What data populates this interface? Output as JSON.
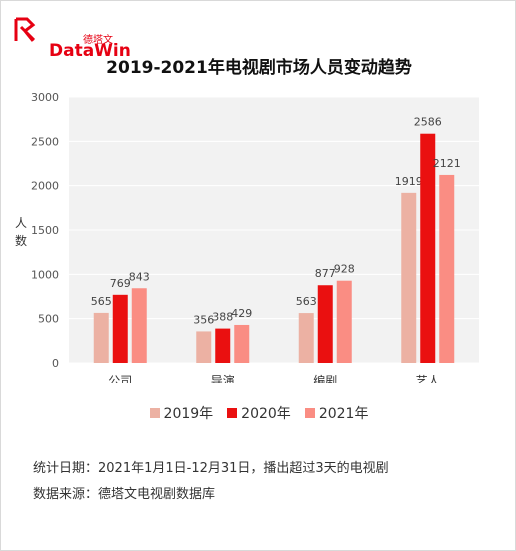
{
  "brand": {
    "name": "DataWin",
    "sub": "德塔文",
    "color": "#e60012"
  },
  "title": "2019-2021年电视剧市场人员变动趋势",
  "chart_data": {
    "type": "bar",
    "title": "2019-2021年电视剧市场人员变动趋势",
    "xlabel": "",
    "ylabel": "人数",
    "ylim": [
      0,
      3000
    ],
    "yticks": [
      0,
      500,
      1000,
      1500,
      2000,
      2500,
      3000
    ],
    "grid": true,
    "legend_position": "bottom",
    "categories": [
      "公司",
      "导演",
      "编剧",
      "艺人"
    ],
    "series": [
      {
        "name": "2019年",
        "values": [
          565,
          356,
          563,
          1919
        ],
        "color": "#ecb1a3"
      },
      {
        "name": "2020年",
        "values": [
          769,
          388,
          877,
          2586
        ],
        "color": "#ea1010"
      },
      {
        "name": "2021年",
        "values": [
          843,
          429,
          928,
          2121
        ],
        "color": "#fa8d83"
      }
    ]
  },
  "notes": {
    "stat_date": "统计日期：2021年1月1日-12月31日，播出超过3天的电视剧",
    "source": "数据来源：德塔文电视剧数据库"
  }
}
